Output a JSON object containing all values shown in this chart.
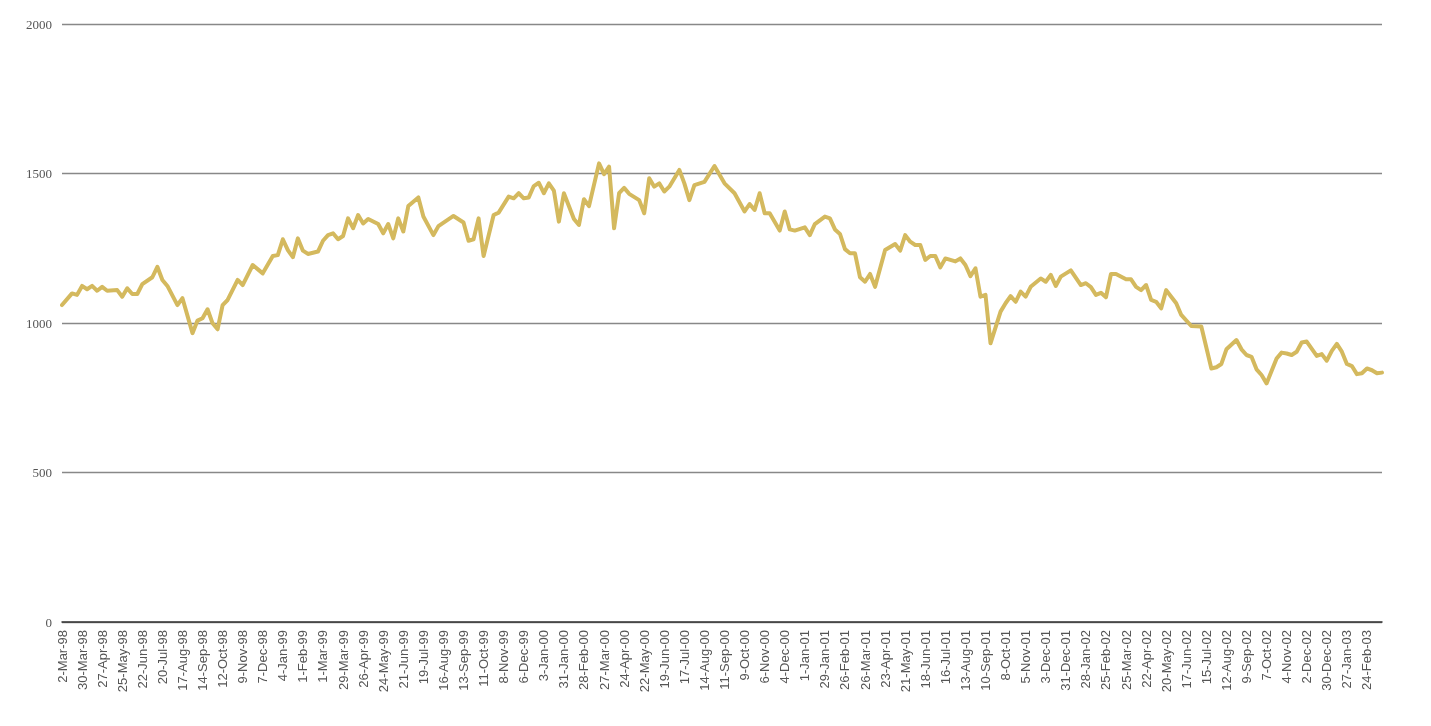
{
  "chart_data": {
    "type": "line",
    "color": "#d4b95e",
    "marker": "none",
    "line_style": "solid",
    "grid": "y",
    "x": [
      "1998-03-02",
      "1998-03-16",
      "1998-03-23",
      "1998-03-30",
      "1998-04-06",
      "1998-04-13",
      "1998-04-20",
      "1998-04-27",
      "1998-05-04",
      "1998-05-18",
      "1998-05-25",
      "1998-06-01",
      "1998-06-08",
      "1998-06-15",
      "1998-06-22",
      "1998-07-06",
      "1998-07-13",
      "1998-07-20",
      "1998-07-27",
      "1998-08-10",
      "1998-08-17",
      "1998-08-31",
      "1998-09-07",
      "1998-09-14",
      "1998-09-21",
      "1998-09-28",
      "1998-10-05",
      "1998-10-12",
      "1998-10-19",
      "1998-11-02",
      "1998-11-09",
      "1998-11-23",
      "1998-12-07",
      "1998-12-21",
      "1998-12-28",
      "1999-01-04",
      "1999-01-11",
      "1999-01-18",
      "1999-01-25",
      "1999-02-01",
      "1999-02-08",
      "1999-02-22",
      "1999-03-01",
      "1999-03-08",
      "1999-03-15",
      "1999-03-22",
      "1999-03-29",
      "1999-04-05",
      "1999-04-12",
      "1999-04-19",
      "1999-04-26",
      "1999-05-03",
      "1999-05-17",
      "1999-05-24",
      "1999-05-31",
      "1999-06-07",
      "1999-06-14",
      "1999-06-21",
      "1999-06-28",
      "1999-07-12",
      "1999-07-19",
      "1999-08-02",
      "1999-08-09",
      "1999-08-30",
      "1999-09-13",
      "1999-09-20",
      "1999-09-27",
      "1999-10-04",
      "1999-10-11",
      "1999-10-25",
      "1999-11-01",
      "1999-11-15",
      "1999-11-22",
      "1999-11-29",
      "1999-12-06",
      "1999-12-13",
      "1999-12-20",
      "1999-12-27",
      "2000-01-03",
      "2000-01-10",
      "2000-01-17",
      "2000-01-24",
      "2000-01-31",
      "2000-02-14",
      "2000-02-21",
      "2000-02-28",
      "2000-03-06",
      "2000-03-20",
      "2000-03-27",
      "2000-04-03",
      "2000-04-10",
      "2000-04-17",
      "2000-04-24",
      "2000-05-01",
      "2000-05-15",
      "2000-05-22",
      "2000-05-29",
      "2000-06-05",
      "2000-06-12",
      "2000-06-19",
      "2000-06-26",
      "2000-07-10",
      "2000-07-17",
      "2000-07-24",
      "2000-07-31",
      "2000-08-14",
      "2000-08-28",
      "2000-09-11",
      "2000-09-25",
      "2000-10-09",
      "2000-10-16",
      "2000-10-23",
      "2000-10-30",
      "2000-11-06",
      "2000-11-13",
      "2000-11-27",
      "2000-12-04",
      "2000-12-11",
      "2000-12-18",
      "2001-01-01",
      "2001-01-08",
      "2001-01-15",
      "2001-01-29",
      "2001-02-05",
      "2001-02-12",
      "2001-02-19",
      "2001-02-26",
      "2001-03-05",
      "2001-03-12",
      "2001-03-19",
      "2001-03-26",
      "2001-04-02",
      "2001-04-09",
      "2001-04-23",
      "2001-05-07",
      "2001-05-14",
      "2001-05-21",
      "2001-05-28",
      "2001-06-04",
      "2001-06-11",
      "2001-06-18",
      "2001-06-25",
      "2001-07-02",
      "2001-07-09",
      "2001-07-16",
      "2001-07-30",
      "2001-08-06",
      "2001-08-13",
      "2001-08-20",
      "2001-08-27",
      "2001-09-03",
      "2001-09-10",
      "2001-09-17",
      "2001-10-01",
      "2001-10-08",
      "2001-10-15",
      "2001-10-22",
      "2001-10-29",
      "2001-11-05",
      "2001-11-12",
      "2001-11-26",
      "2001-12-03",
      "2001-12-10",
      "2001-12-17",
      "2001-12-24",
      "2002-01-07",
      "2002-01-21",
      "2002-01-28",
      "2002-02-04",
      "2002-02-11",
      "2002-02-18",
      "2002-02-25",
      "2002-03-04",
      "2002-03-11",
      "2002-03-25",
      "2002-04-01",
      "2002-04-08",
      "2002-04-15",
      "2002-04-22",
      "2002-04-29",
      "2002-05-06",
      "2002-05-13",
      "2002-05-20",
      "2002-05-27",
      "2002-06-03",
      "2002-06-10",
      "2002-06-24",
      "2002-07-08",
      "2002-07-22",
      "2002-07-29",
      "2002-08-05",
      "2002-08-12",
      "2002-08-26",
      "2002-09-02",
      "2002-09-09",
      "2002-09-16",
      "2002-09-23",
      "2002-09-30",
      "2002-10-07",
      "2002-10-21",
      "2002-10-28",
      "2002-11-04",
      "2002-11-11",
      "2002-11-18",
      "2002-11-25",
      "2002-12-02",
      "2002-12-16",
      "2002-12-23",
      "2002-12-30",
      "2003-01-06",
      "2003-01-13",
      "2003-01-20",
      "2003-01-27",
      "2003-02-03",
      "2003-02-10",
      "2003-02-17",
      "2003-02-24",
      "2003-03-03",
      "2003-03-10",
      "2003-03-17"
    ],
    "values": [
      1060,
      1099,
      1094,
      1124,
      1113,
      1124,
      1108,
      1121,
      1108,
      1110,
      1088,
      1116,
      1097,
      1097,
      1130,
      1153,
      1188,
      1144,
      1124,
      1060,
      1083,
      966,
      1008,
      1016,
      1046,
      999,
      979,
      1060,
      1077,
      1144,
      1127,
      1194,
      1166,
      1224,
      1227,
      1280,
      1244,
      1220,
      1283,
      1242,
      1231,
      1239,
      1275,
      1294,
      1300,
      1280,
      1291,
      1350,
      1317,
      1361,
      1333,
      1348,
      1331,
      1300,
      1331,
      1283,
      1350,
      1306,
      1391,
      1420,
      1356,
      1294,
      1324,
      1358,
      1336,
      1275,
      1280,
      1350,
      1224,
      1361,
      1369,
      1423,
      1417,
      1434,
      1417,
      1420,
      1458,
      1469,
      1434,
      1467,
      1443,
      1339,
      1434,
      1348,
      1328,
      1414,
      1391,
      1534,
      1498,
      1523,
      1317,
      1434,
      1452,
      1432,
      1411,
      1367,
      1484,
      1456,
      1467,
      1440,
      1456,
      1512,
      1467,
      1411,
      1461,
      1472,
      1525,
      1467,
      1434,
      1373,
      1398,
      1378,
      1434,
      1367,
      1367,
      1309,
      1373,
      1313,
      1309,
      1320,
      1294,
      1331,
      1356,
      1350,
      1313,
      1298,
      1247,
      1233,
      1233,
      1153,
      1138,
      1164,
      1121,
      1244,
      1264,
      1242,
      1294,
      1272,
      1261,
      1261,
      1211,
      1224,
      1224,
      1186,
      1216,
      1206,
      1216,
      1194,
      1157,
      1183,
      1088,
      1094,
      932,
      1038,
      1066,
      1090,
      1071,
      1105,
      1088,
      1121,
      1149,
      1138,
      1161,
      1124,
      1155,
      1176,
      1127,
      1133,
      1120,
      1094,
      1101,
      1086,
      1164,
      1164,
      1146,
      1146,
      1121,
      1110,
      1127,
      1077,
      1071,
      1049,
      1110,
      1088,
      1066,
      1027,
      990,
      988,
      848,
      852,
      863,
      912,
      943,
      912,
      893,
      887,
      845,
      826,
      798,
      881,
      901,
      898,
      893,
      904,
      935,
      938,
      890,
      896,
      874,
      907,
      930,
      904,
      863,
      856,
      829,
      832,
      848,
      842,
      832,
      834
    ],
    "xlim": [
      "1998-03-02",
      "2003-03-17"
    ],
    "xticks": [
      {
        "value": "1998-03-02",
        "label": "2-Mar-98"
      },
      {
        "value": "1998-03-30",
        "label": "30-Mar-98"
      },
      {
        "value": "1998-04-27",
        "label": "27-Apr-98"
      },
      {
        "value": "1998-05-25",
        "label": "25-May-98"
      },
      {
        "value": "1998-06-22",
        "label": "22-Jun-98"
      },
      {
        "value": "1998-07-20",
        "label": "20-Jul-98"
      },
      {
        "value": "1998-08-17",
        "label": "17-Aug-98"
      },
      {
        "value": "1998-09-14",
        "label": "14-Sep-98"
      },
      {
        "value": "1998-10-12",
        "label": "12-Oct-98"
      },
      {
        "value": "1998-11-09",
        "label": "9-Nov-98"
      },
      {
        "value": "1998-12-07",
        "label": "7-Dec-98"
      },
      {
        "value": "1999-01-04",
        "label": "4-Jan-99"
      },
      {
        "value": "1999-02-01",
        "label": "1-Feb-99"
      },
      {
        "value": "1999-03-01",
        "label": "1-Mar-99"
      },
      {
        "value": "1999-03-29",
        "label": "29-Mar-99"
      },
      {
        "value": "1999-04-26",
        "label": "26-Apr-99"
      },
      {
        "value": "1999-05-24",
        "label": "24-May-99"
      },
      {
        "value": "1999-06-21",
        "label": "21-Jun-99"
      },
      {
        "value": "1999-07-19",
        "label": "19-Jul-99"
      },
      {
        "value": "1999-08-16",
        "label": "16-Aug-99"
      },
      {
        "value": "1999-09-13",
        "label": "13-Sep-99"
      },
      {
        "value": "1999-10-11",
        "label": "11-Oct-99"
      },
      {
        "value": "1999-11-08",
        "label": "8-Nov-99"
      },
      {
        "value": "1999-12-06",
        "label": "6-Dec-99"
      },
      {
        "value": "2000-01-03",
        "label": "3-Jan-00"
      },
      {
        "value": "2000-01-31",
        "label": "31-Jan-00"
      },
      {
        "value": "2000-02-28",
        "label": "28-Feb-00"
      },
      {
        "value": "2000-03-27",
        "label": "27-Mar-00"
      },
      {
        "value": "2000-04-24",
        "label": "24-Apr-00"
      },
      {
        "value": "2000-05-22",
        "label": "22-May-00"
      },
      {
        "value": "2000-06-19",
        "label": "19-Jun-00"
      },
      {
        "value": "2000-07-17",
        "label": "17-Jul-00"
      },
      {
        "value": "2000-08-14",
        "label": "14-Aug-00"
      },
      {
        "value": "2000-09-11",
        "label": "11-Sep-00"
      },
      {
        "value": "2000-10-09",
        "label": "9-Oct-00"
      },
      {
        "value": "2000-11-06",
        "label": "6-Nov-00"
      },
      {
        "value": "2000-12-04",
        "label": "4-Dec-00"
      },
      {
        "value": "2001-01-01",
        "label": "1-Jan-01"
      },
      {
        "value": "2001-01-29",
        "label": "29-Jan-01"
      },
      {
        "value": "2001-02-26",
        "label": "26-Feb-01"
      },
      {
        "value": "2001-03-26",
        "label": "26-Mar-01"
      },
      {
        "value": "2001-04-23",
        "label": "23-Apr-01"
      },
      {
        "value": "2001-05-21",
        "label": "21-May-01"
      },
      {
        "value": "2001-06-18",
        "label": "18-Jun-01"
      },
      {
        "value": "2001-07-16",
        "label": "16-Jul-01"
      },
      {
        "value": "2001-08-13",
        "label": "13-Aug-01"
      },
      {
        "value": "2001-09-10",
        "label": "10-Sep-01"
      },
      {
        "value": "2001-10-08",
        "label": "8-Oct-01"
      },
      {
        "value": "2001-11-05",
        "label": "5-Nov-01"
      },
      {
        "value": "2001-12-03",
        "label": "3-Dec-01"
      },
      {
        "value": "2001-12-31",
        "label": "31-Dec-01"
      },
      {
        "value": "2002-01-28",
        "label": "28-Jan-02"
      },
      {
        "value": "2002-02-25",
        "label": "25-Feb-02"
      },
      {
        "value": "2002-03-25",
        "label": "25-Mar-02"
      },
      {
        "value": "2002-04-22",
        "label": "22-Apr-02"
      },
      {
        "value": "2002-05-20",
        "label": "20-May-02"
      },
      {
        "value": "2002-06-17",
        "label": "17-Jun-02"
      },
      {
        "value": "2002-07-15",
        "label": "15-Jul-02"
      },
      {
        "value": "2002-08-12",
        "label": "12-Aug-02"
      },
      {
        "value": "2002-09-09",
        "label": "9-Sep-02"
      },
      {
        "value": "2002-10-07",
        "label": "7-Oct-02"
      },
      {
        "value": "2002-11-04",
        "label": "4-Nov-02"
      },
      {
        "value": "2002-12-02",
        "label": "2-Dec-02"
      },
      {
        "value": "2002-12-30",
        "label": "30-Dec-02"
      },
      {
        "value": "2003-01-27",
        "label": "27-Jan-03"
      },
      {
        "value": "2003-02-24",
        "label": "24-Feb-03"
      }
    ],
    "ylim": [
      0,
      2000
    ],
    "yticks": [
      0,
      500,
      1000,
      1500,
      2000
    ]
  }
}
